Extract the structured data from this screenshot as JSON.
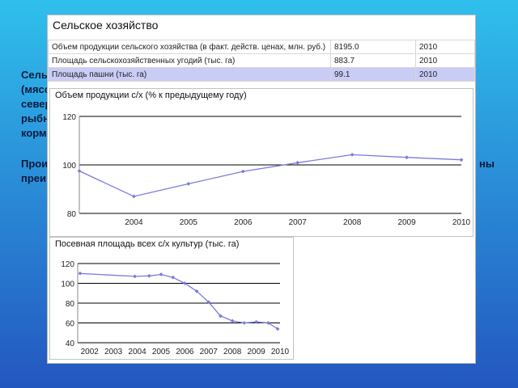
{
  "background_text": {
    "line1": "Сель",
    "line2": "(мясо",
    "line3": "север",
    "line4": "рыбн",
    "line5": "корм",
    "line6": "Прои",
    "line7": "преи",
    "line8": "ны"
  },
  "panel": {
    "title": "Сельское хозяйство",
    "rows": [
      {
        "label": "Объем продукции сельского хозяйства (в факт. действ. ценах, млн. руб.)",
        "value": "8195.0",
        "year": "2010"
      },
      {
        "label": "Площадь сельскохозяйственных угодий (тыс. га)",
        "value": "883.7",
        "year": "2010"
      },
      {
        "label": "Площадь пашни (тыс. га)",
        "value": "99.1",
        "year": "2010"
      }
    ]
  },
  "colors": {
    "line": "#7b7bdc",
    "grid": "#000000",
    "highlight_row": "#c9ccf4"
  },
  "chart_data": [
    {
      "type": "line",
      "title": "Объем продукции с/х (% к предыдущему году)",
      "xlabel": "",
      "ylabel": "",
      "ylim": [
        80,
        120
      ],
      "yticks": [
        80,
        100,
        120
      ],
      "xlim": [
        2003,
        2010
      ],
      "xticks": [
        2004,
        2005,
        2006,
        2007,
        2008,
        2009,
        2010
      ],
      "x": [
        2003,
        2004,
        2005,
        2006,
        2007,
        2008,
        2009,
        2010
      ],
      "values": [
        97.5,
        87,
        92.2,
        97.3,
        100.9,
        104.2,
        103.1,
        102.1
      ],
      "grid": true
    },
    {
      "type": "line",
      "title": "Посевная площадь всех с/х культур (тыс. га)",
      "xlabel": "",
      "ylabel": "",
      "ylim": [
        40,
        120
      ],
      "yticks": [
        40,
        60,
        80,
        100,
        120
      ],
      "xlim": [
        2001.5,
        2010
      ],
      "xticks": [
        2002,
        2003,
        2004,
        2005,
        2006,
        2007,
        2008,
        2009,
        2010
      ],
      "x": [
        2001.6,
        2003.9,
        2004.5,
        2005.0,
        2005.5,
        2006.0,
        2006.5,
        2007.0,
        2007.5,
        2008.0,
        2008.5,
        2009.0,
        2009.5,
        2009.9
      ],
      "values": [
        110,
        107,
        107.5,
        109,
        106,
        100,
        92,
        81,
        67,
        62,
        60,
        61,
        60,
        54
      ],
      "grid": true
    }
  ]
}
